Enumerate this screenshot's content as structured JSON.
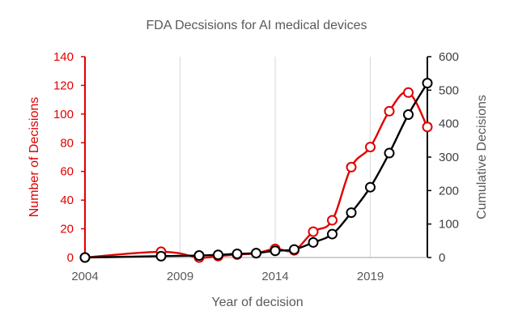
{
  "chart_data": {
    "type": "line",
    "title": "FDA Decsisions for AI medical devices",
    "xlabel": "Year of decision",
    "ylabel_left": "Number of Decisions",
    "ylabel_right": "Cumulative Decisions",
    "xlim": [
      2004,
      2022
    ],
    "ylim_left": [
      0,
      140
    ],
    "ylim_right": [
      0,
      600
    ],
    "x_ticks": [
      "2004",
      "2009",
      "2014",
      "2019"
    ],
    "y_ticks_left": [
      "0",
      "20",
      "40",
      "60",
      "80",
      "100",
      "120",
      "140"
    ],
    "y_ticks_right": [
      "0",
      "100",
      "200",
      "300",
      "400",
      "500",
      "600"
    ],
    "gridlines": "vertical",
    "series": [
      {
        "name": "Number of Decisions",
        "axis": "left",
        "color": "#e00000",
        "points": [
          {
            "x": 2004,
            "y": 0
          },
          {
            "x": 2008,
            "y": 4
          },
          {
            "x": 2010,
            "y": 0
          },
          {
            "x": 2011,
            "y": 1
          },
          {
            "x": 2012,
            "y": 2
          },
          {
            "x": 2013,
            "y": 3
          },
          {
            "x": 2014,
            "y": 6
          },
          {
            "x": 2015,
            "y": 5
          },
          {
            "x": 2016,
            "y": 18
          },
          {
            "x": 2017,
            "y": 26
          },
          {
            "x": 2018,
            "y": 63
          },
          {
            "x": 2019,
            "y": 77
          },
          {
            "x": 2020,
            "y": 102
          },
          {
            "x": 2021,
            "y": 115
          },
          {
            "x": 2022,
            "y": 91
          }
        ]
      },
      {
        "name": "Cumulative Decisions",
        "axis": "right",
        "color": "#000000",
        "points": [
          {
            "x": 2004,
            "y": 0
          },
          {
            "x": 2008,
            "y": 4
          },
          {
            "x": 2010,
            "y": 6
          },
          {
            "x": 2011,
            "y": 8
          },
          {
            "x": 2012,
            "y": 11
          },
          {
            "x": 2013,
            "y": 13
          },
          {
            "x": 2014,
            "y": 20
          },
          {
            "x": 2015,
            "y": 24
          },
          {
            "x": 2016,
            "y": 45
          },
          {
            "x": 2017,
            "y": 70
          },
          {
            "x": 2018,
            "y": 134
          },
          {
            "x": 2019,
            "y": 210
          },
          {
            "x": 2020,
            "y": 312
          },
          {
            "x": 2021,
            "y": 427
          },
          {
            "x": 2022,
            "y": 521
          }
        ]
      }
    ]
  }
}
